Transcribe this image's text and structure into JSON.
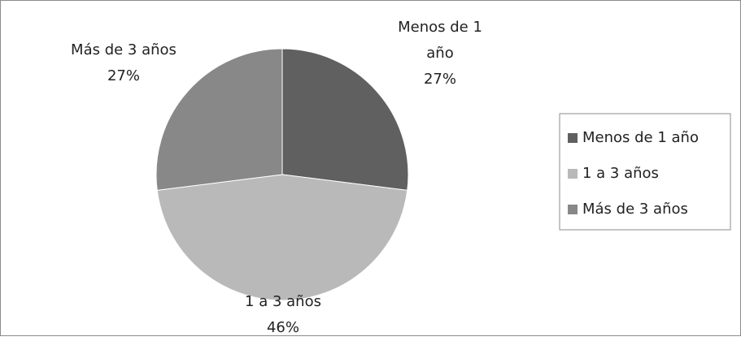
{
  "chart_data": {
    "type": "pie",
    "categories": [
      "Menos de 1 año",
      "1 a 3 años",
      "Más de 3 años"
    ],
    "values": [
      27,
      46,
      27
    ],
    "value_labels": [
      "27%",
      "46%",
      "27%"
    ],
    "colors": [
      "#606060",
      "#b9b9b9",
      "#888888"
    ],
    "legend": "right"
  }
}
